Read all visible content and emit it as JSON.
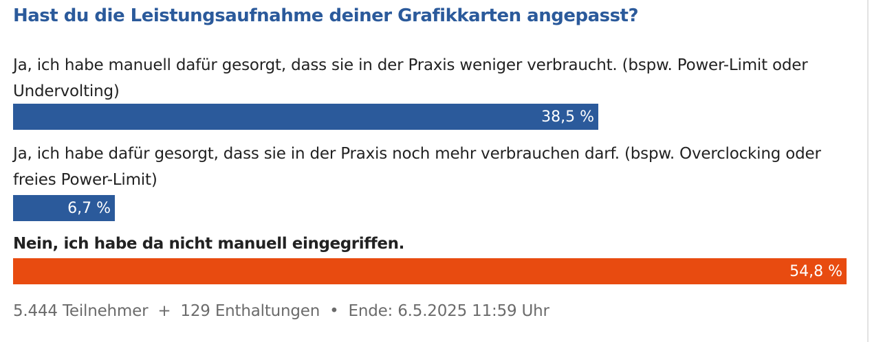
{
  "poll": {
    "title": "Hast du die Leistungsaufnahme deiner Grafikkarten angepasst?",
    "options": [
      {
        "label": "Ja, ich habe manuell dafür gesorgt, dass sie in der Praxis weniger verbraucht. (bspw. Power-Limit oder Undervolting)",
        "value_text": "38,5 %",
        "percent": 38.5,
        "color": "#2b5a9b",
        "winner": false
      },
      {
        "label": "Ja, ich habe dafür gesorgt, dass sie in der Praxis noch mehr verbrauchen darf. (bspw. Overclocking oder freies Power-Limit)",
        "value_text": "6,7 %",
        "percent": 6.7,
        "color": "#2b5a9b",
        "winner": false
      },
      {
        "label": "Nein, ich habe da nicht manuell eingegriffen.",
        "value_text": "54,8 %",
        "percent": 54.8,
        "color": "#e84b10",
        "winner": true
      }
    ],
    "footer": {
      "participants": "5.444 Teilnehmer",
      "plus": "+",
      "abstentions": "129 Enthaltungen",
      "bullet": "•",
      "end": "Ende: 6.5.2025 11:59 Uhr"
    }
  }
}
